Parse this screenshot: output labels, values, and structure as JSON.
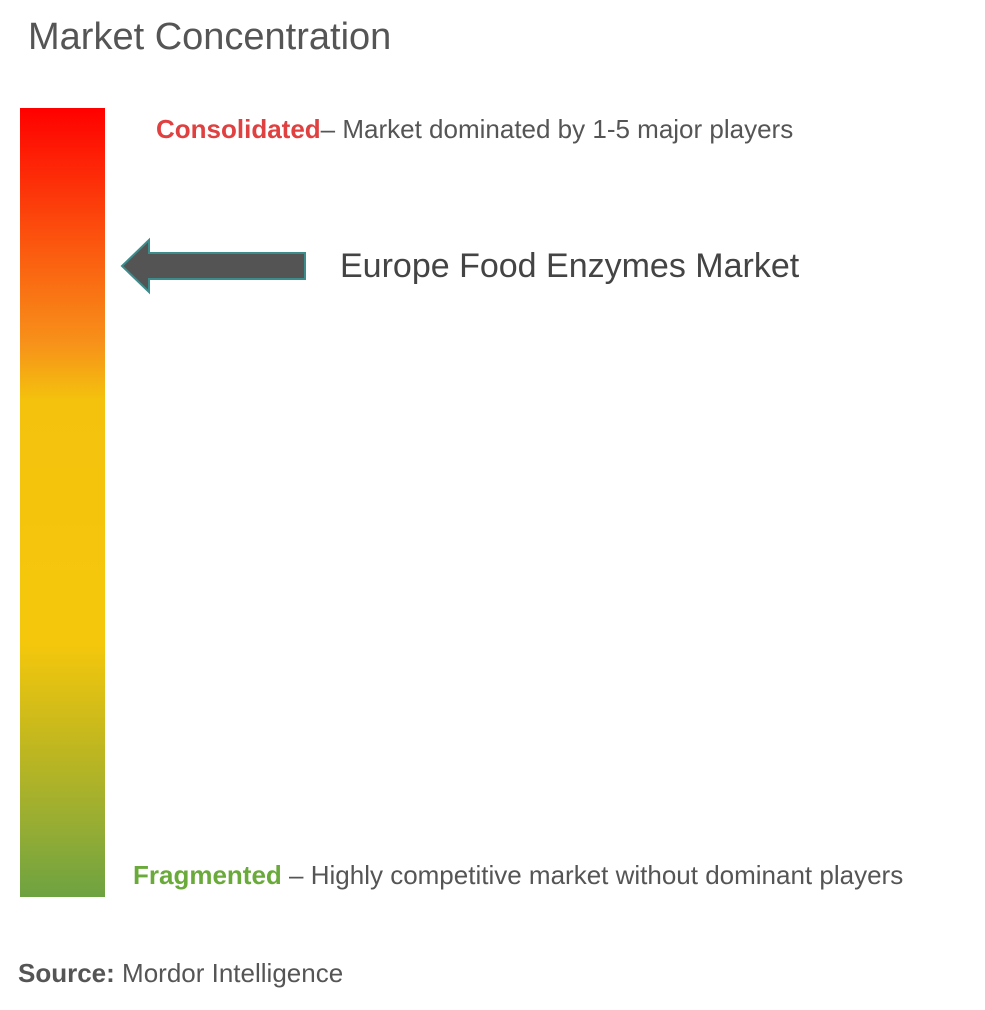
{
  "header": {
    "title": "Market Concentration"
  },
  "scale": {
    "consolidated": {
      "label": "Consolidated",
      "description": "– Market dominated by 1-5 major players"
    },
    "fragmented": {
      "label": "Fragmented",
      "description": " – Highly competitive market without dominant players"
    }
  },
  "marker": {
    "label": "Europe Food Enzymes Market"
  },
  "footer": {
    "source_label": "Source:",
    "source": "Mordor Intelligence"
  }
}
